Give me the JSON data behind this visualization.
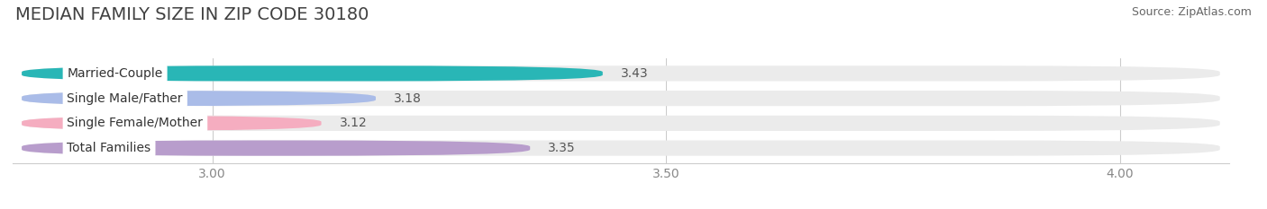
{
  "title": "MEDIAN FAMILY SIZE IN ZIP CODE 30180",
  "source": "Source: ZipAtlas.com",
  "categories": [
    "Married-Couple",
    "Single Male/Father",
    "Single Female/Mother",
    "Total Families"
  ],
  "values": [
    3.43,
    3.18,
    3.12,
    3.35
  ],
  "bar_colors": [
    "#29b6b6",
    "#aabce8",
    "#f5adc0",
    "#b89dcc"
  ],
  "xlim_min": 2.78,
  "xlim_max": 4.12,
  "xticks": [
    3.0,
    3.5,
    4.0
  ],
  "xtick_labels": [
    "3.00",
    "3.50",
    "4.00"
  ],
  "background_color": "#ffffff",
  "bar_bg_color": "#ebebeb",
  "title_fontsize": 14,
  "source_fontsize": 9,
  "tick_fontsize": 10,
  "value_fontsize": 10,
  "label_fontsize": 10,
  "bar_height": 0.62
}
